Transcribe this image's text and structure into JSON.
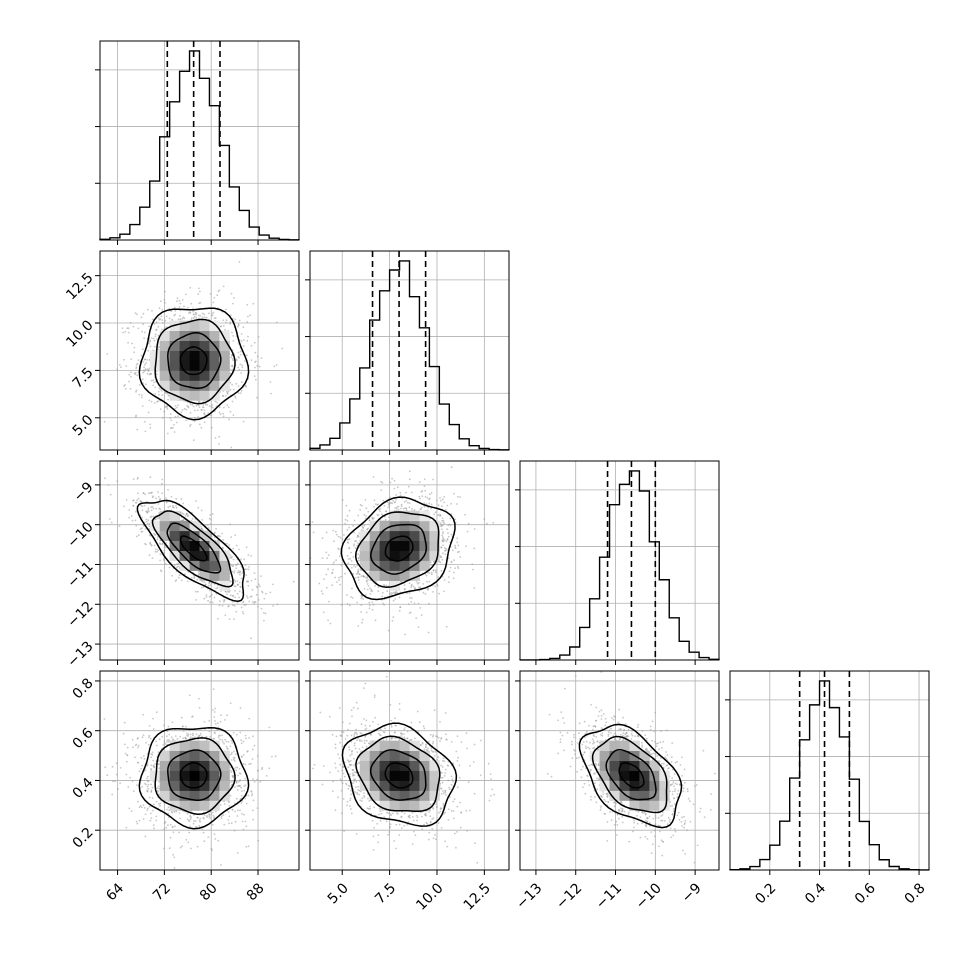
{
  "chart_data": {
    "type": "corner",
    "grid": true,
    "parameters": [
      {
        "ticks": [
          64,
          72,
          80,
          88
        ],
        "tick_labels": [
          "64",
          "72",
          "80",
          "88"
        ],
        "range": [
          61,
          95
        ],
        "mean": 77.0,
        "sd": 4.5,
        "quantiles": [
          72.5,
          77.0,
          81.5
        ]
      },
      {
        "ticks": [
          5.0,
          7.5,
          10.0,
          12.5
        ],
        "tick_labels": [
          "5.0",
          "7.5",
          "10.0",
          "12.5"
        ],
        "range": [
          3.3,
          13.8
        ],
        "mean": 8.0,
        "sd": 1.45,
        "quantiles": [
          6.6,
          8.0,
          9.4
        ]
      },
      {
        "ticks": [
          -13,
          -12,
          -11,
          -10,
          -9
        ],
        "tick_labels": [
          "−13",
          "−12",
          "−11",
          "−10",
          "−9"
        ],
        "range": [
          -13.4,
          -8.4
        ],
        "mean": -10.6,
        "sd": 0.62,
        "quantiles": [
          -11.2,
          -10.6,
          -10.0
        ]
      },
      {
        "ticks": [
          0.2,
          0.4,
          0.6,
          0.8
        ],
        "tick_labels": [
          "0.2",
          "0.4",
          "0.6",
          "0.8"
        ],
        "range": [
          0.04,
          0.84
        ],
        "mean": 0.42,
        "sd": 0.1,
        "quantiles": [
          0.32,
          0.42,
          0.52
        ]
      }
    ],
    "correlations": [
      {
        "pair": [
          0,
          1
        ],
        "rho": 0.0
      },
      {
        "pair": [
          0,
          2
        ],
        "rho": -0.75
      },
      {
        "pair": [
          1,
          2
        ],
        "rho": 0.2
      },
      {
        "pair": [
          0,
          3
        ],
        "rho": 0.0
      },
      {
        "pair": [
          1,
          3
        ],
        "rho": -0.2
      },
      {
        "pair": [
          2,
          3
        ],
        "rho": -0.45
      }
    ]
  }
}
